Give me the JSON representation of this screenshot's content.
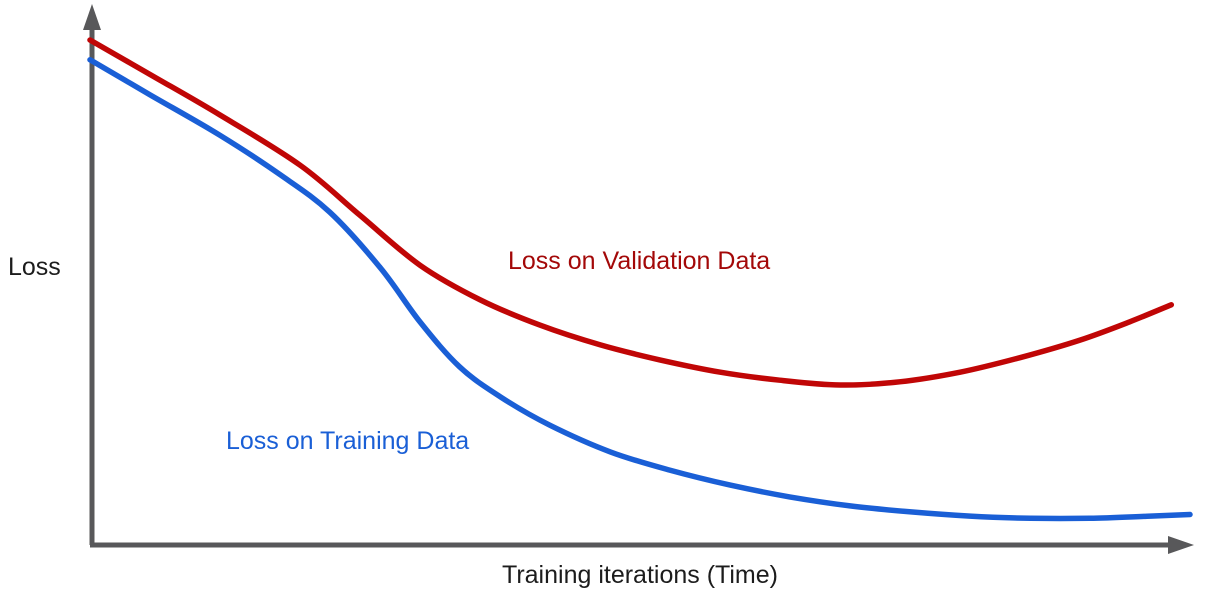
{
  "chart_data": {
    "type": "line",
    "title": "",
    "xlabel": "Training iterations (Time)",
    "ylabel": "Loss",
    "x_range": [
      0,
      100
    ],
    "y_range": [
      0,
      10
    ],
    "grid": false,
    "legend_position": "inline-annotations",
    "axes_note": "unlabeled axes with arrowheads; values are relative estimates",
    "series": [
      {
        "name": "Loss on Validation Data",
        "color": "#c00606",
        "label_color": "#a30808",
        "x": [
          0,
          5.5,
          11.8,
          19.1,
          24.5,
          30,
          35.5,
          40.9,
          46.4,
          51.8,
          57.3,
          62.7,
          68.2,
          73.6,
          79.1,
          84.5,
          90,
          94.5,
          98.3
        ],
        "y": [
          9.44,
          8.79,
          8.04,
          7.1,
          6.17,
          5.23,
          4.58,
          4.11,
          3.74,
          3.46,
          3.23,
          3.08,
          2.99,
          3.05,
          3.23,
          3.5,
          3.83,
          4.17,
          4.49
        ]
      },
      {
        "name": "Loss on Training Data",
        "color": "#1a5fd6",
        "label_color": "#1a5fd6",
        "x": [
          0,
          5.5,
          11.8,
          17.3,
          21.8,
          26.4,
          30,
          33.6,
          37.3,
          41.8,
          47.3,
          52.7,
          58.2,
          63.6,
          69.1,
          74.5,
          80,
          85.5,
          90.9,
          96.4,
          100
        ],
        "y": [
          9.07,
          8.41,
          7.66,
          6.92,
          6.22,
          5.18,
          4.17,
          3.33,
          2.77,
          2.24,
          1.74,
          1.4,
          1.12,
          0.9,
          0.73,
          0.62,
          0.54,
          0.5,
          0.5,
          0.54,
          0.57
        ]
      }
    ]
  },
  "colors": {
    "axis": "#58585a",
    "background": "#ffffff",
    "axis_label_text": "#1c1c1c"
  }
}
